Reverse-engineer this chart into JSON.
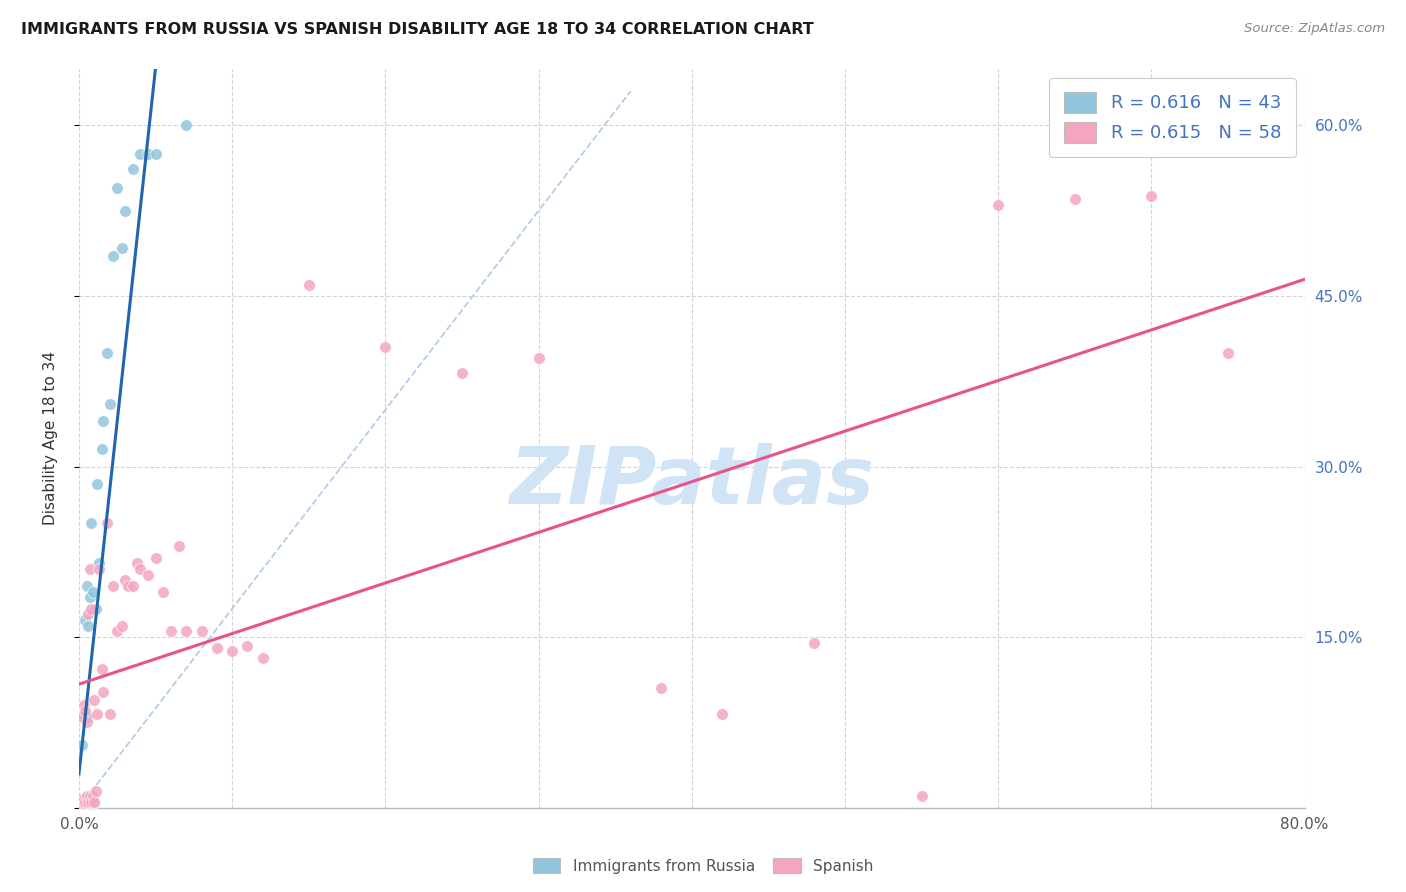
{
  "title": "IMMIGRANTS FROM RUSSIA VS SPANISH DISABILITY AGE 18 TO 34 CORRELATION CHART",
  "source": "Source: ZipAtlas.com",
  "ylabel": "Disability Age 18 to 34",
  "xlim": [
    0.0,
    0.8
  ],
  "ylim": [
    0.0,
    0.65
  ],
  "blue_color": "#92c5de",
  "pink_color": "#f4a6c0",
  "blue_line_color": "#2166ac",
  "pink_line_color": "#e8538a",
  "dashed_line_color": "#aec7e8",
  "watermark_color": "#d0e4f5",
  "russia_x": [
    0.001,
    0.001,
    0.002,
    0.002,
    0.002,
    0.003,
    0.003,
    0.003,
    0.003,
    0.004,
    0.004,
    0.004,
    0.005,
    0.005,
    0.005,
    0.005,
    0.006,
    0.006,
    0.006,
    0.006,
    0.007,
    0.007,
    0.008,
    0.008,
    0.009,
    0.009,
    0.01,
    0.011,
    0.012,
    0.013,
    0.015,
    0.016,
    0.018,
    0.02,
    0.022,
    0.025,
    0.028,
    0.03,
    0.035,
    0.04,
    0.045,
    0.05,
    0.07
  ],
  "russia_y": [
    0.003,
    0.006,
    0.003,
    0.006,
    0.055,
    0.003,
    0.006,
    0.08,
    0.004,
    0.004,
    0.008,
    0.165,
    0.003,
    0.006,
    0.08,
    0.195,
    0.003,
    0.006,
    0.08,
    0.16,
    0.004,
    0.185,
    0.003,
    0.25,
    0.004,
    0.19,
    0.004,
    0.175,
    0.285,
    0.215,
    0.315,
    0.34,
    0.4,
    0.355,
    0.485,
    0.545,
    0.492,
    0.525,
    0.562,
    0.575,
    0.575,
    0.575,
    0.6
  ],
  "spanish_x": [
    0.001,
    0.001,
    0.002,
    0.002,
    0.003,
    0.003,
    0.003,
    0.004,
    0.004,
    0.005,
    0.005,
    0.006,
    0.006,
    0.007,
    0.007,
    0.008,
    0.008,
    0.009,
    0.01,
    0.01,
    0.011,
    0.012,
    0.013,
    0.015,
    0.016,
    0.018,
    0.02,
    0.022,
    0.025,
    0.028,
    0.03,
    0.032,
    0.035,
    0.038,
    0.04,
    0.045,
    0.05,
    0.055,
    0.06,
    0.065,
    0.07,
    0.08,
    0.09,
    0.1,
    0.11,
    0.12,
    0.15,
    0.2,
    0.25,
    0.3,
    0.38,
    0.42,
    0.48,
    0.55,
    0.6,
    0.65,
    0.7,
    0.75
  ],
  "spanish_y": [
    0.004,
    0.008,
    0.004,
    0.08,
    0.004,
    0.008,
    0.09,
    0.005,
    0.085,
    0.01,
    0.075,
    0.005,
    0.17,
    0.01,
    0.21,
    0.005,
    0.175,
    0.01,
    0.005,
    0.095,
    0.015,
    0.082,
    0.21,
    0.122,
    0.102,
    0.25,
    0.082,
    0.195,
    0.155,
    0.16,
    0.2,
    0.195,
    0.195,
    0.215,
    0.21,
    0.205,
    0.22,
    0.19,
    0.155,
    0.23,
    0.155,
    0.155,
    0.14,
    0.138,
    0.142,
    0.132,
    0.46,
    0.405,
    0.382,
    0.395,
    0.105,
    0.082,
    0.145,
    0.01,
    0.53,
    0.535,
    0.538,
    0.4
  ],
  "legend_text1": "R = 0.616   N = 43",
  "legend_text2": "R = 0.615   N = 58"
}
